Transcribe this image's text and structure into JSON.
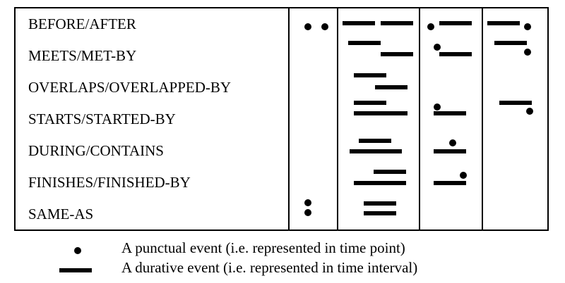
{
  "relations": [
    {
      "id": "before-after",
      "label": "BEFORE/AFTER"
    },
    {
      "id": "meets-met-by",
      "label": "MEETS/MET-BY"
    },
    {
      "id": "overlaps-overlapped-by",
      "label": "OVERLAPS/OVERLAPPED-BY"
    },
    {
      "id": "starts-started-by",
      "label": "STARTS/STARTED-BY"
    },
    {
      "id": "during-contains",
      "label": "DURING/CONTAINS"
    },
    {
      "id": "finishes-finished-by",
      "label": "FINISHES/FINISHED-BY"
    },
    {
      "id": "same-as",
      "label": "SAME-AS"
    }
  ],
  "legend": {
    "punctual": "A punctual event (i.e. represented in time point)",
    "durative": "A durative event (i.e. represented in time interval)"
  },
  "colors": {
    "ink": "#000000",
    "background": "#ffffff"
  },
  "icons": {
    "punctual": "point-icon",
    "durative": "interval-icon"
  }
}
